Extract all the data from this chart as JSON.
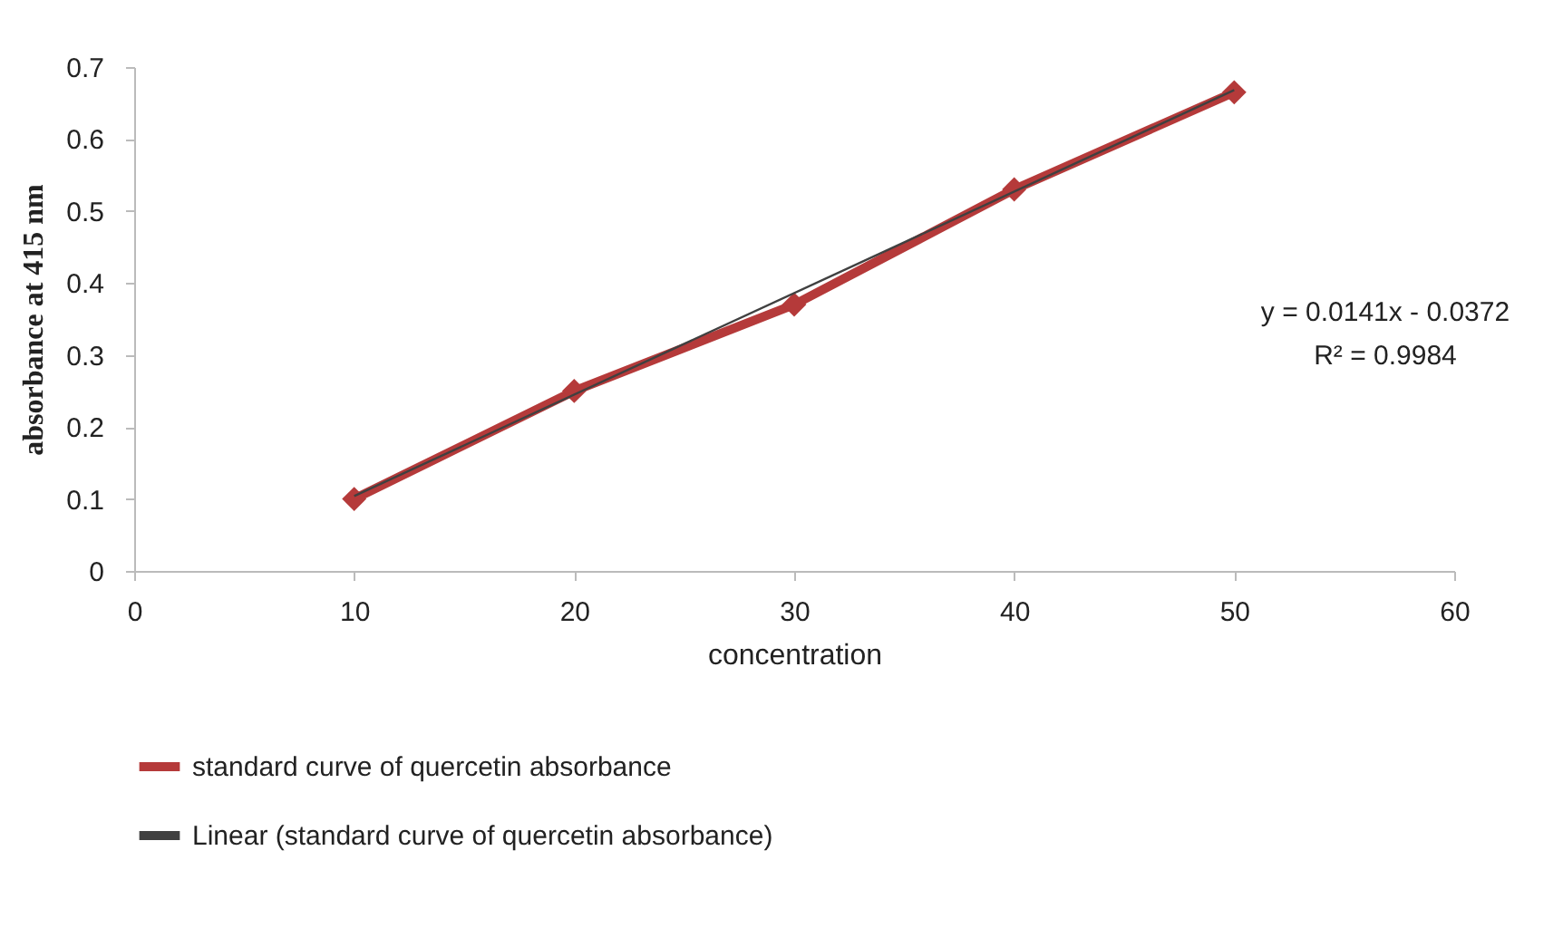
{
  "chart_data": {
    "type": "line",
    "xlabel": "concentration",
    "ylabel": "absorbance at 415 nm",
    "xlim": [
      0,
      60
    ],
    "xticks": [
      0,
      10,
      20,
      30,
      40,
      50,
      60
    ],
    "ylim": [
      0,
      0.7
    ],
    "yticks": [
      0,
      0.1,
      0.2,
      0.3,
      0.4,
      0.5,
      0.6,
      0.7
    ],
    "grid": false,
    "legend": "bottom",
    "marker": "diamond",
    "annotations": [
      "y = 0.0141x - 0.0372",
      "R² = 0.9984"
    ],
    "series": [
      {
        "name": "standard curve of quercetin absorbance",
        "color": "#b53a3a",
        "x": [
          10,
          20,
          30,
          40,
          50
        ],
        "values": [
          0.1,
          0.25,
          0.37,
          0.53,
          0.665
        ]
      },
      {
        "name": "Linear (standard curve of quercetin absorbance)",
        "type": "line",
        "marker": "none",
        "color": "#404040",
        "x": [
          10,
          50
        ],
        "values": [
          0.104,
          0.668
        ]
      }
    ]
  }
}
